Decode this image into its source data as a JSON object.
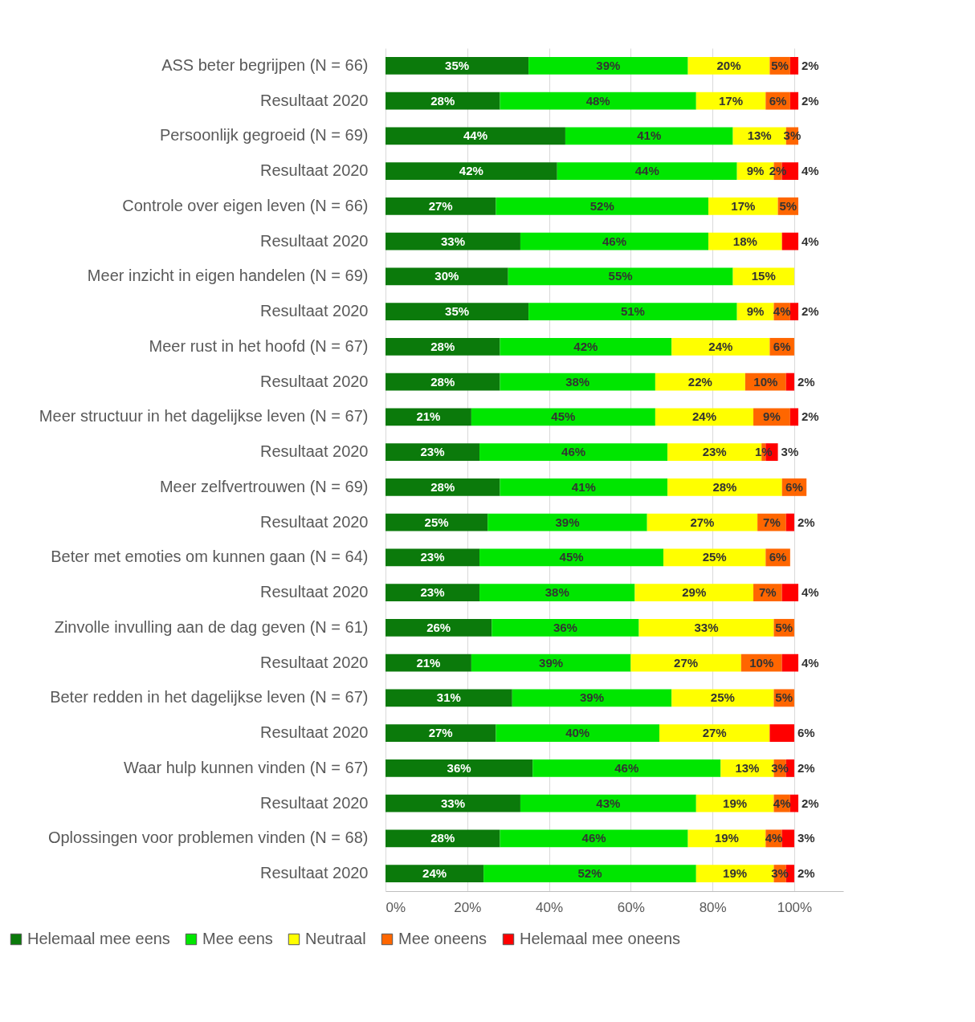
{
  "chart_data": {
    "type": "bar",
    "orientation": "horizontal",
    "stacked": true,
    "grid": "x",
    "legend": "bottom",
    "categories": [
      "ASS beter begrijpen (N = 66)",
      "Resultaat 2020",
      "Persoonlijk gegroeid (N = 69)",
      "Resultaat 2020",
      "Controle over eigen leven (N = 66)",
      "Resultaat 2020",
      "Meer inzicht in eigen handelen (N = 69)",
      "Resultaat 2020",
      "Meer rust in het hoofd (N = 67)",
      "Resultaat 2020",
      "Meer structuur in het dagelijkse leven (N = 67)",
      "Resultaat 2020",
      "Meer zelfvertrouwen (N = 69)",
      "Resultaat 2020",
      "Beter met emoties om kunnen gaan (N = 64)",
      "Resultaat 2020",
      "Zinvolle invulling aan de dag geven (N = 61)",
      "Resultaat 2020",
      "Beter redden in het dagelijkse leven (N = 67)",
      "Resultaat 2020",
      "Waar hulp kunnen vinden (N = 67)",
      "Resultaat 2020",
      "Oplossingen voor problemen vinden (N = 68)",
      "Resultaat 2020"
    ],
    "xlim": [
      0,
      112
    ],
    "xticks": [
      {
        "value": 0,
        "label": "0%"
      },
      {
        "value": 20,
        "label": "20%"
      },
      {
        "value": 40,
        "label": "40%"
      },
      {
        "value": 60,
        "label": "60%"
      },
      {
        "value": 80,
        "label": "80%"
      },
      {
        "value": 100,
        "label": "100%"
      }
    ],
    "series": [
      {
        "name": "Helemaal mee eens",
        "color": "#0b7a0b",
        "values": [
          35,
          28,
          44,
          42,
          27,
          33,
          30,
          35,
          28,
          28,
          21,
          23,
          28,
          25,
          23,
          23,
          26,
          21,
          31,
          27,
          36,
          33,
          28,
          24
        ],
        "value_labels": [
          "35%",
          "28%",
          "44%",
          "42%",
          "27%",
          "33%",
          "30%",
          "35%",
          "28%",
          "28%",
          "21%",
          "23%",
          "28%",
          "25%",
          "23%",
          "23%",
          "26%",
          "21%",
          "31%",
          "27%",
          "36%",
          "33%",
          "28%",
          "24%"
        ]
      },
      {
        "name": "Mee eens",
        "color": "#00e600",
        "values": [
          39,
          48,
          41,
          44,
          52,
          46,
          55,
          51,
          42,
          38,
          45,
          46,
          41,
          39,
          45,
          38,
          36,
          39,
          39,
          40,
          46,
          43,
          46,
          52
        ],
        "value_labels": [
          "39%",
          "48%",
          "41%",
          "44%",
          "52%",
          "46%",
          "55%",
          "51%",
          "42%",
          "38%",
          "45%",
          "46%",
          "41%",
          "39%",
          "45%",
          "38%",
          "36%",
          "39%",
          "39%",
          "40%",
          "46%",
          "43%",
          "46%",
          "52%"
        ]
      },
      {
        "name": "Neutraal",
        "color": "#ffff00",
        "values": [
          20,
          17,
          13,
          9,
          17,
          18,
          15,
          9,
          24,
          22,
          24,
          23,
          28,
          27,
          25,
          29,
          33,
          27,
          25,
          27,
          13,
          19,
          19,
          19
        ],
        "value_labels": [
          "20%",
          "17%",
          "13%",
          "9%",
          "17%",
          "18%",
          "15%",
          "9%",
          "24%",
          "22%",
          "24%",
          "23%",
          "28%",
          "27%",
          "25%",
          "29%",
          "33%",
          "27%",
          "25%",
          "27%",
          "13%",
          "19%",
          "19%",
          "19%"
        ]
      },
      {
        "name": "Mee oneens",
        "color": "#ff6600",
        "values": [
          5,
          6,
          3,
          2,
          5,
          null,
          null,
          4,
          6,
          10,
          9,
          1,
          6,
          7,
          6,
          7,
          5,
          10,
          5,
          null,
          3,
          4,
          4,
          3
        ],
        "value_labels": [
          "5%",
          "6%",
          "3%",
          "2%",
          "5%",
          null,
          null,
          "4%",
          "6%",
          "10%",
          "9%",
          "1%",
          "6%",
          "7%",
          "6%",
          "7%",
          "5%",
          "10%",
          "5%",
          null,
          "3%",
          "4%",
          "4%",
          "3%"
        ]
      },
      {
        "name": "Helemaal mee oneens",
        "color": "#ff0000",
        "values": [
          2,
          2,
          null,
          4,
          null,
          4,
          null,
          2,
          null,
          2,
          2,
          3,
          null,
          2,
          null,
          4,
          null,
          4,
          null,
          6,
          2,
          2,
          3,
          2
        ],
        "value_labels": [
          "2%",
          "2%",
          null,
          "4%",
          null,
          "4%",
          null,
          "2%",
          null,
          "2%",
          "2%",
          "3%",
          null,
          "2%",
          null,
          "4%",
          null,
          "4%",
          null,
          "6%",
          "2%",
          "2%",
          "3%",
          "2%"
        ]
      }
    ]
  }
}
